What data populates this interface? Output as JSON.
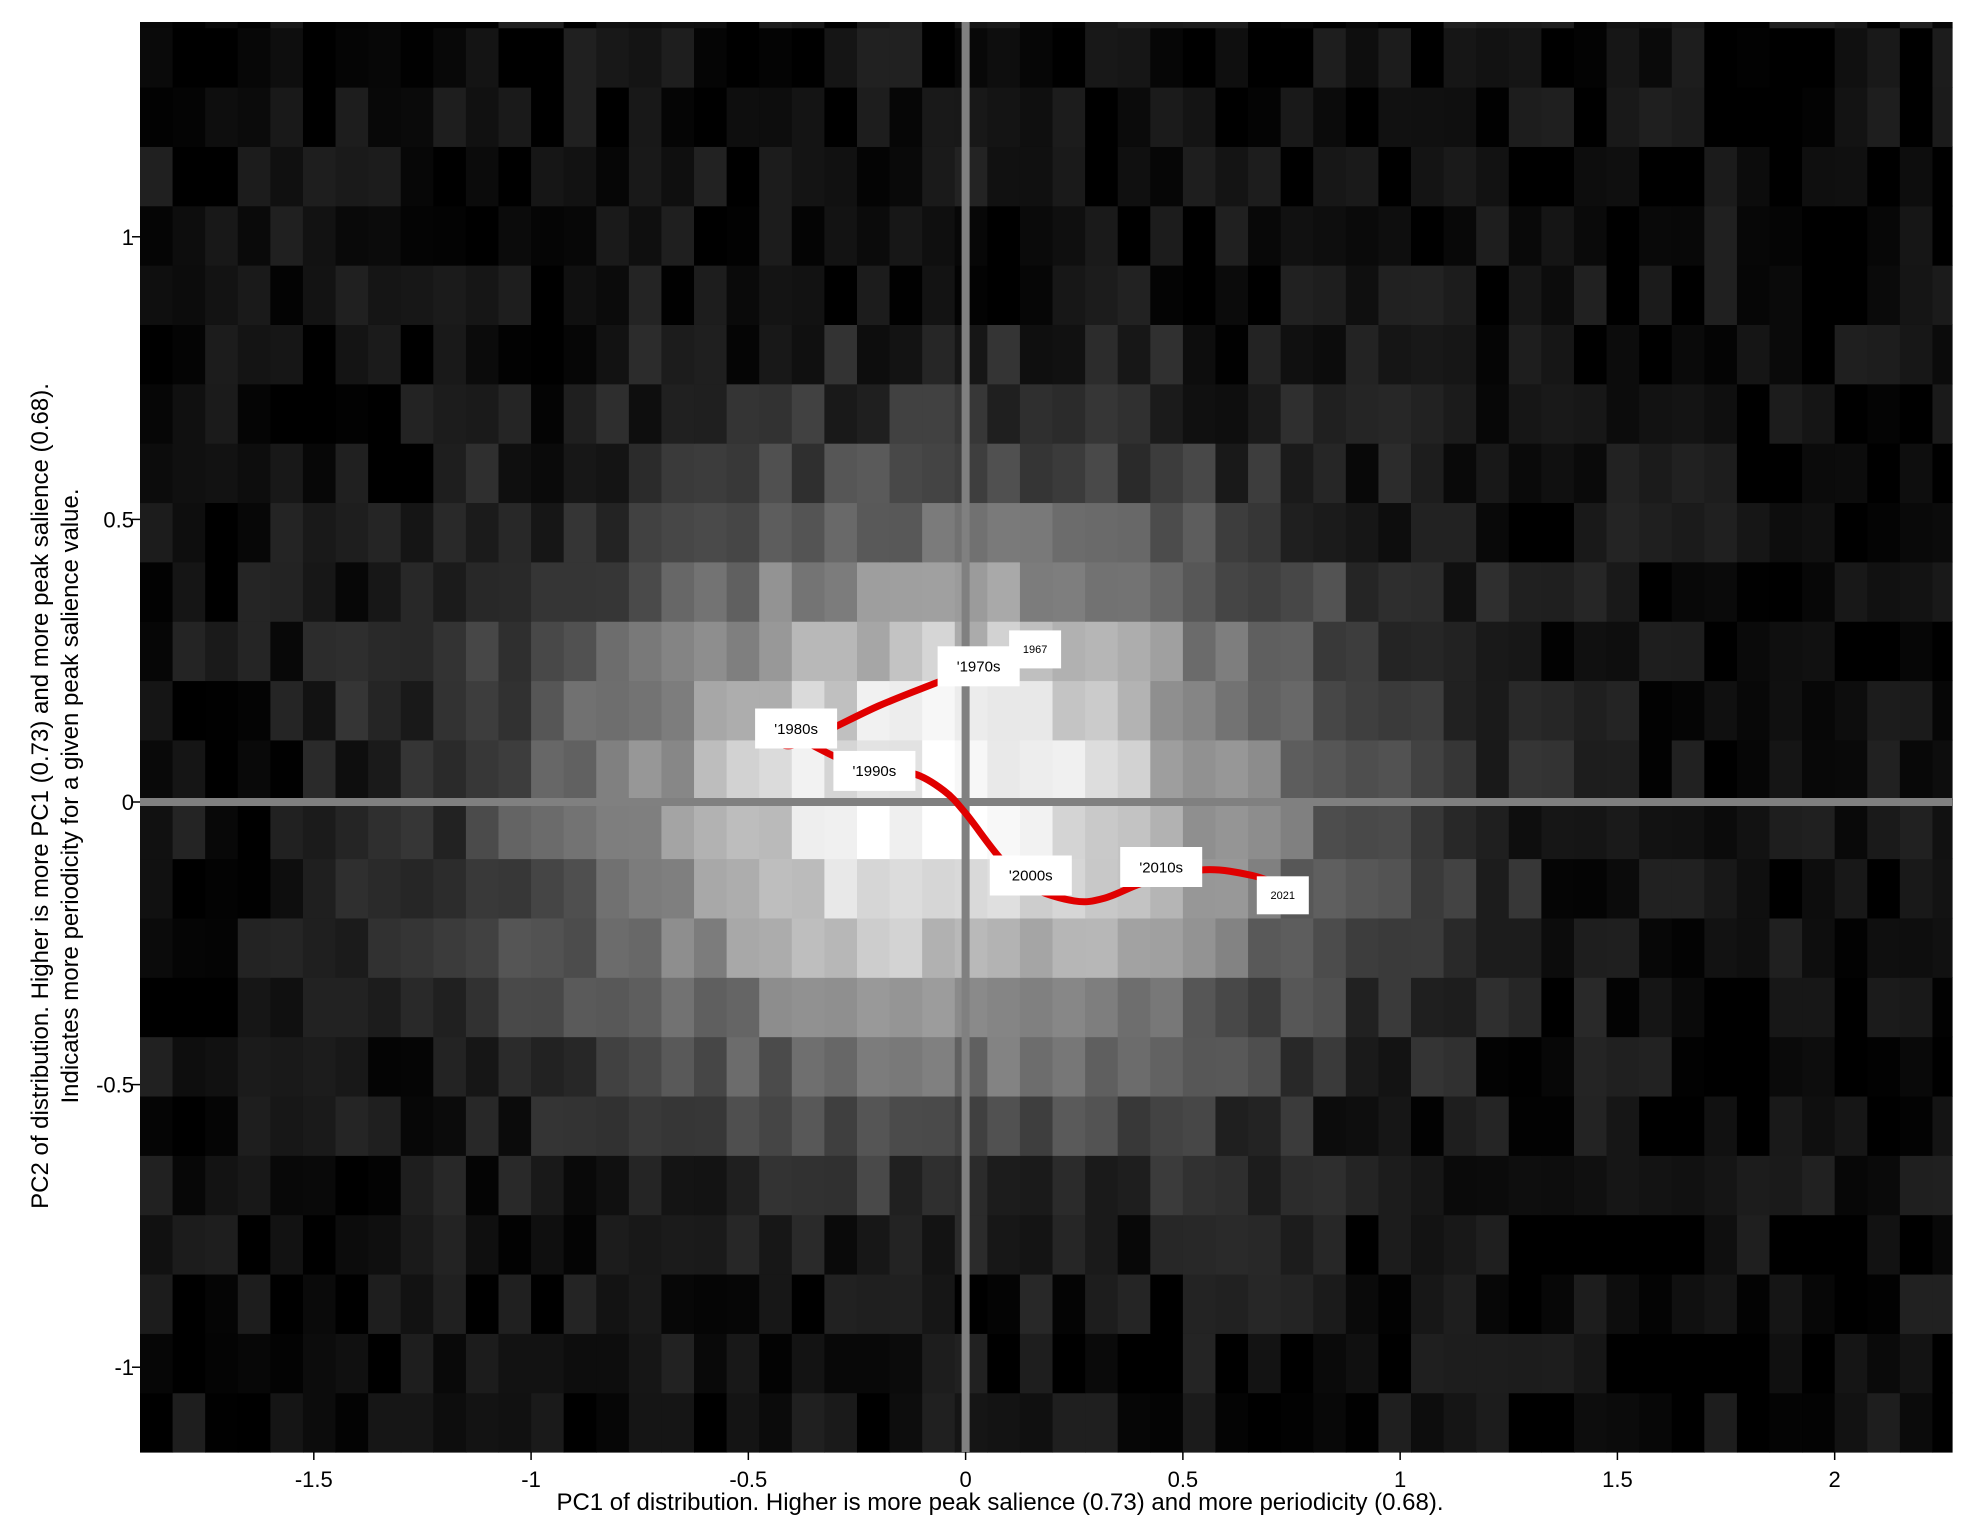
{
  "chart_data": {
    "type": "heatmap",
    "title": "",
    "xlabel": "PC1 of distribution. Higher is more peak salience (0.73) and more periodicity (0.68).",
    "ylabel_lines": [
      "PC2 of distribution. Higher is more PC1 (0.73) and more peak salience (0.68).",
      "Indicates more periodicity for a given peak salience value."
    ],
    "xlim": [
      -1.9,
      2.27
    ],
    "ylim": [
      -1.15,
      1.38
    ],
    "x_ticks": [
      -1.5,
      -1,
      -0.5,
      0,
      0.5,
      1,
      1.5,
      2
    ],
    "x_tick_labels": [
      "-1.5",
      "-1",
      "-0.5",
      "0",
      "0.5",
      "1",
      "1.5",
      "2"
    ],
    "y_ticks": [
      -1,
      -0.5,
      0,
      0.5,
      1
    ],
    "y_tick_labels": [
      "-1",
      "-0.5",
      "0",
      "0.5",
      "1"
    ],
    "colormap": "gray",
    "heatmap_model": {
      "bin_width_x": 0.075,
      "bin_height_y": 0.105,
      "center_x": -0.05,
      "center_y": 0.0,
      "sigma_x": 0.62,
      "sigma_y": 0.36,
      "peak_intensity": 0.95,
      "noise": 0.09,
      "seed": 7
    },
    "reference_lines": {
      "x": 0,
      "y": 0,
      "color": "#808080"
    },
    "trajectory": {
      "color": "#e00000",
      "points": [
        {
          "x": 0.15,
          "y": 0.27,
          "label": "1967"
        },
        {
          "x": 0.03,
          "y": 0.24,
          "label": "'1970s"
        },
        {
          "x": -0.07,
          "y": 0.21
        },
        {
          "x": -0.2,
          "y": 0.17
        },
        {
          "x": -0.4,
          "y": 0.1
        },
        {
          "x": -0.43,
          "y": 0.13,
          "label": "'1980s"
        },
        {
          "x": -0.3,
          "y": 0.08
        },
        {
          "x": -0.2,
          "y": 0.05,
          "label": "'1990s"
        },
        {
          "x": -0.12,
          "y": 0.05
        },
        {
          "x": -0.05,
          "y": 0.02
        },
        {
          "x": 0.0,
          "y": -0.02
        },
        {
          "x": 0.08,
          "y": -0.1
        },
        {
          "x": 0.15,
          "y": -0.15,
          "label": "'2000s"
        },
        {
          "x": 0.25,
          "y": -0.175
        },
        {
          "x": 0.32,
          "y": -0.17
        },
        {
          "x": 0.42,
          "y": -0.14,
          "label": "'2010s"
        },
        {
          "x": 0.55,
          "y": -0.12
        },
        {
          "x": 0.66,
          "y": -0.13
        },
        {
          "x": 0.73,
          "y": -0.15,
          "label": "2021"
        }
      ]
    },
    "annotations": [
      {
        "text": "1967",
        "x": 0.16,
        "y": 0.27,
        "size": "small"
      },
      {
        "text": "'1970s",
        "x": 0.03,
        "y": 0.24,
        "size": "large"
      },
      {
        "text": "'1980s",
        "x": -0.39,
        "y": 0.13,
        "size": "large"
      },
      {
        "text": "'1990s",
        "x": -0.21,
        "y": 0.055,
        "size": "large"
      },
      {
        "text": "'2000s",
        "x": 0.15,
        "y": -0.13,
        "size": "large"
      },
      {
        "text": "'2010s",
        "x": 0.45,
        "y": -0.115,
        "size": "large"
      },
      {
        "text": "2021",
        "x": 0.73,
        "y": -0.165,
        "size": "small"
      }
    ]
  }
}
